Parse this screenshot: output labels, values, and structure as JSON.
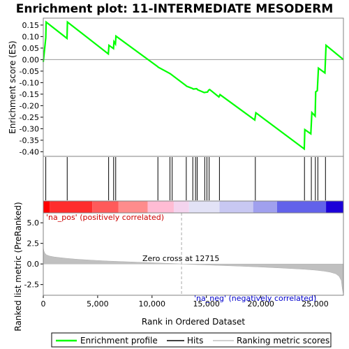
{
  "chart_data": {
    "type": "line",
    "title": "Enrichment plot: 11-INTERMEDIATE MESODERM",
    "panels": {
      "enrichment": {
        "ylabel": "Enrichment score (ES)",
        "xlim": [
          0,
          27600
        ],
        "ylim": [
          -0.42,
          0.18
        ],
        "yticks": [
          0.15,
          0.1,
          0.05,
          0.0,
          -0.05,
          -0.1,
          -0.15,
          -0.2,
          -0.25,
          -0.3,
          -0.35,
          -0.4
        ],
        "ytick_labels": [
          "0.15",
          "0.10",
          "0.05",
          "0.00",
          "-0.05",
          "-0.10",
          "-0.15",
          "-0.20",
          "-0.25",
          "-0.30",
          "-0.35",
          "-0.40"
        ],
        "series": [
          {
            "name": "Enrichment profile",
            "color": "#00ff00",
            "x": [
              0,
              230,
              260,
              2180,
              2220,
              5980,
              6040,
              6460,
              6500,
              6640,
              6680,
              10500,
              10580,
              11600,
              11700,
              13100,
              13200,
              13700,
              13800,
              14100,
              14200,
              14800,
              14900,
              15100,
              15200,
              15300,
              16150,
              16250,
              19450,
              19550,
              24000,
              24050,
              24600,
              24700,
              25000,
              25050,
              25200,
              25300,
              25900,
              26000,
              27600
            ],
            "y": [
              -0.01,
              0.095,
              0.163,
              0.092,
              0.163,
              0.025,
              0.062,
              0.048,
              0.078,
              0.068,
              0.102,
              -0.03,
              -0.033,
              -0.059,
              -0.062,
              -0.112,
              -0.116,
              -0.125,
              -0.128,
              -0.126,
              -0.131,
              -0.143,
              -0.142,
              -0.141,
              -0.133,
              -0.13,
              -0.162,
              -0.152,
              -0.262,
              -0.231,
              -0.388,
              -0.304,
              -0.322,
              -0.23,
              -0.245,
              -0.14,
              -0.135,
              -0.037,
              -0.058,
              0.062,
              0.0
            ]
          }
        ]
      },
      "hits": {
        "positions": [
          230,
          2200,
          6010,
          6470,
          6660,
          10540,
          11650,
          11850,
          13150,
          13750,
          14000,
          14150,
          14850,
          15050,
          15250,
          16200,
          19500,
          24020,
          24650,
          25020,
          25250,
          25950
        ]
      },
      "ranking_bar": {
        "segments": [
          {
            "from": 0,
            "to": 600,
            "color": "#ff0000"
          },
          {
            "from": 600,
            "to": 4500,
            "color": "#ff2d2d"
          },
          {
            "from": 4500,
            "to": 6900,
            "color": "#ff5a5a"
          },
          {
            "from": 6900,
            "to": 9600,
            "color": "#ff8c8c"
          },
          {
            "from": 9600,
            "to": 12000,
            "color": "#ffbcd4"
          },
          {
            "from": 12000,
            "to": 13400,
            "color": "#f4d4ee"
          },
          {
            "from": 13400,
            "to": 16200,
            "color": "#e2e2f6"
          },
          {
            "from": 16200,
            "to": 19300,
            "color": "#c8c8f2"
          },
          {
            "from": 19300,
            "to": 21500,
            "color": "#a0a0ee"
          },
          {
            "from": 21500,
            "to": 26000,
            "color": "#6262ea"
          },
          {
            "from": 26000,
            "to": 27600,
            "color": "#1c00d8"
          }
        ]
      },
      "ranking": {
        "ylabel": "Ranked list metric (PreRanked)",
        "xlabel": "Rank in Ordered Dataset",
        "xlim": [
          0,
          27600
        ],
        "ylim": [
          -3.8,
          6.2
        ],
        "yticks": [
          5.0,
          2.5,
          0.0,
          -2.5
        ],
        "ytick_labels": [
          "5.0",
          "2.5",
          "0.0",
          "-2.5"
        ],
        "xticks": [
          0,
          5000,
          10000,
          15000,
          20000,
          25000
        ],
        "xtick_labels": [
          "0",
          "5,000",
          "10,000",
          "15,000",
          "20,000",
          "25,000"
        ],
        "series": [
          {
            "name": "Ranking metric scores",
            "color": "#c0c0c0",
            "x": [
              0,
              50,
              150,
              300,
              600,
              1000,
              2000,
              3000,
              4000,
              5000,
              6000,
              8000,
              10000,
              12000,
              12715,
              14000,
              16000,
              18000,
              20000,
              22000,
              24000,
              25000,
              25800,
              26400,
              26900,
              27200,
              27400,
              27500,
              27600
            ],
            "y": [
              2.1,
              1.6,
              1.3,
              1.1,
              0.95,
              0.85,
              0.7,
              0.58,
              0.5,
              0.42,
              0.35,
              0.25,
              0.15,
              0.05,
              0.0,
              -0.07,
              -0.17,
              -0.27,
              -0.38,
              -0.5,
              -0.65,
              -0.75,
              -0.87,
              -1.0,
              -1.2,
              -1.5,
              -2.0,
              -3.0,
              -3.7
            ]
          }
        ],
        "zero_cross": 12715,
        "annotations": {
          "pos_label": "'na_pos' (positively correlated)",
          "neg_label": "'na_neg' (negatively correlated)",
          "zero_cross_label": "Zero cross at 12715"
        }
      }
    },
    "legend": {
      "placement": "bottom",
      "entries": [
        {
          "label": "Enrichment profile",
          "color": "#00ff00"
        },
        {
          "label": "Hits",
          "color": "#000000"
        },
        {
          "label": "Ranking metric scores",
          "color": "#c0c0c0"
        }
      ]
    }
  }
}
